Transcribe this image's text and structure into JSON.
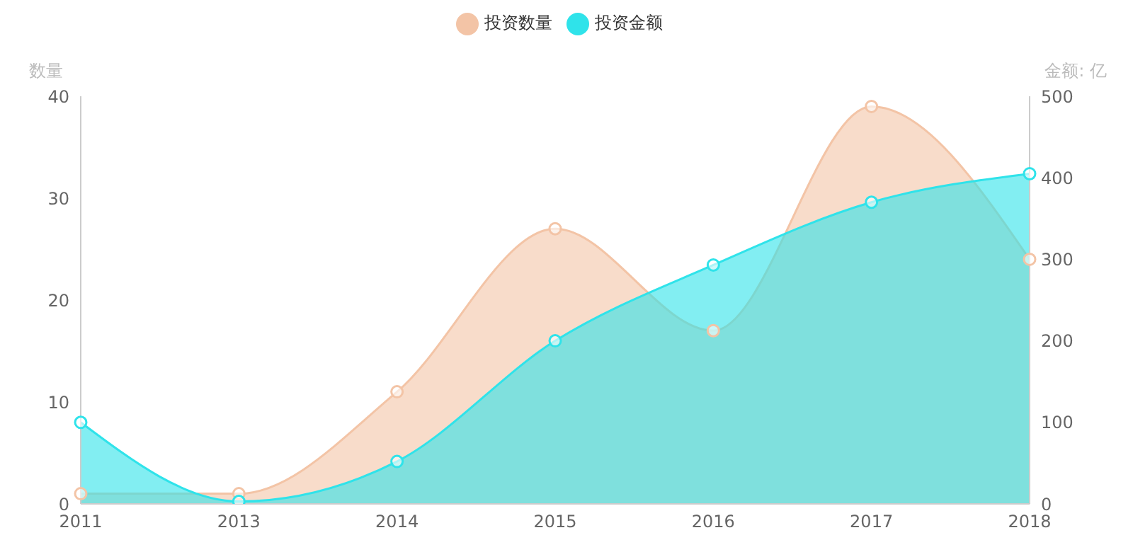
{
  "chart_data": {
    "type": "area",
    "categories": [
      "2011",
      "2013",
      "2014",
      "2015",
      "2016",
      "2017",
      "2018"
    ],
    "ylabel": "数量",
    "y2label": "金额: 亿",
    "ylim": [
      0,
      40
    ],
    "yticks": [
      0,
      10,
      20,
      30,
      40
    ],
    "y2lim": [
      0,
      500
    ],
    "y2ticks": [
      0,
      100,
      200,
      300,
      400,
      500
    ],
    "series": [
      {
        "name": "投资数量",
        "color": "#f3c4a6",
        "values": [
          1,
          1,
          11,
          27,
          17,
          39,
          24
        ]
      },
      {
        "name": "投资金额",
        "color": "#2fe3ea",
        "axis": "y2",
        "values": [
          100,
          3,
          52,
          200,
          293,
          370,
          405
        ]
      }
    ],
    "legend": "top",
    "marker": "circle",
    "grid": false
  }
}
